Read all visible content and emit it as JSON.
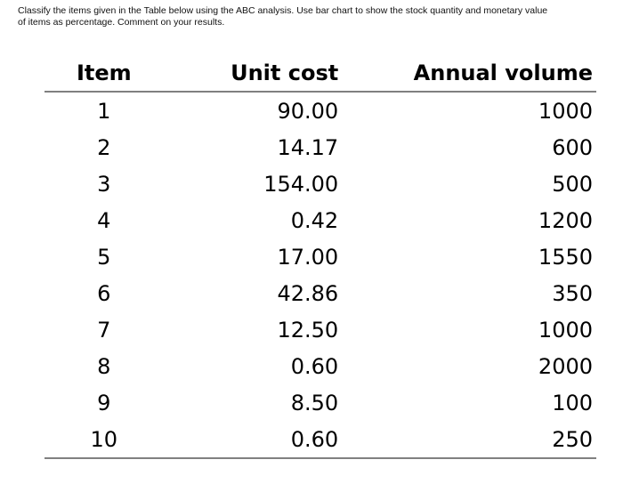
{
  "instructions": {
    "line1": "Classify the items given in the Table below using the ABC analysis. Use bar chart to show the stock quantity and monetary value",
    "line2": "of items as percentage. Comment on your results."
  },
  "table": {
    "headers": {
      "item": "Item",
      "unit_cost": "Unit cost",
      "annual_volume": "Annual volume"
    },
    "rows": [
      {
        "item": "1",
        "unit_cost": "90.00",
        "annual_volume": "1000"
      },
      {
        "item": "2",
        "unit_cost": "14.17",
        "annual_volume": "600"
      },
      {
        "item": "3",
        "unit_cost": "154.00",
        "annual_volume": "500"
      },
      {
        "item": "4",
        "unit_cost": "0.42",
        "annual_volume": "1200"
      },
      {
        "item": "5",
        "unit_cost": "17.00",
        "annual_volume": "1550"
      },
      {
        "item": "6",
        "unit_cost": "42.86",
        "annual_volume": "350"
      },
      {
        "item": "7",
        "unit_cost": "12.50",
        "annual_volume": "1000"
      },
      {
        "item": "8",
        "unit_cost": "0.60",
        "annual_volume": "2000"
      },
      {
        "item": "9",
        "unit_cost": "8.50",
        "annual_volume": "100"
      },
      {
        "item": "10",
        "unit_cost": "0.60",
        "annual_volume": "250"
      }
    ]
  }
}
